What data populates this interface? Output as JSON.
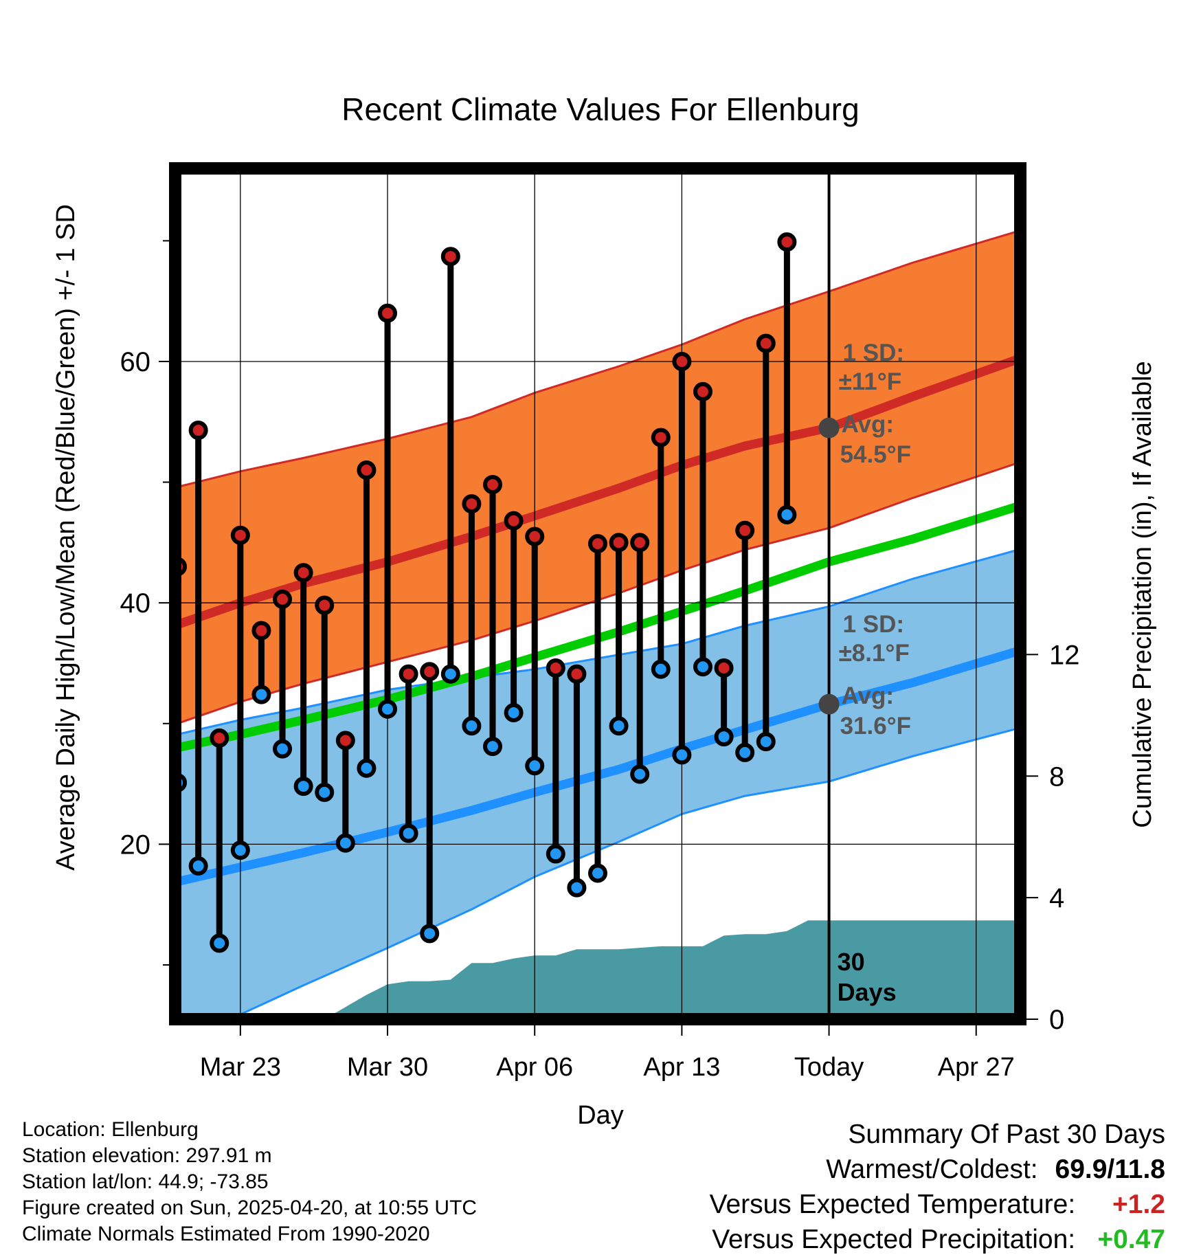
{
  "chart_data": {
    "type": "line",
    "title": "Recent Climate Values For Ellenburg",
    "xlabel": "Day",
    "ylabel": "Average Daily High/Low/Mean (Red/Blue/Green) +/- 1 SD",
    "y2label": "Cumulative Precipitation (in), If Available",
    "x_ticks": [
      {
        "day": 2,
        "label": "Mar 23"
      },
      {
        "day": 9,
        "label": "Mar 30"
      },
      {
        "day": 16,
        "label": "Apr 06"
      },
      {
        "day": 23,
        "label": "Apr 13"
      },
      {
        "day": 30,
        "label": "Today"
      },
      {
        "day": 37,
        "label": "Apr 27"
      }
    ],
    "xlim": [
      -1.1,
      39.1
    ],
    "y_ticks": [
      20,
      40,
      60
    ],
    "ylim": [
      5.5,
      76
    ],
    "y2_ticks": [
      0,
      4,
      8,
      12
    ],
    "y2lim": [
      0,
      28
    ],
    "today_day": 30,
    "today_label": "30\nDays",
    "normals": {
      "days": [
        -1,
        2,
        5,
        9,
        13,
        16,
        20,
        23,
        26,
        30,
        34,
        39
      ],
      "high_avg": [
        38.2,
        40.0,
        41.6,
        43.4,
        45.5,
        47.2,
        49.5,
        51.4,
        53.0,
        54.5,
        57.1,
        60.2
      ],
      "high_lo": [
        30.0,
        31.8,
        33.3,
        35.1,
        36.9,
        38.5,
        40.8,
        42.7,
        44.4,
        46.2,
        48.7,
        51.6
      ],
      "high_hi": [
        49.6,
        50.9,
        52.0,
        53.6,
        55.4,
        57.4,
        59.6,
        61.4,
        63.5,
        65.8,
        68.2,
        70.8
      ],
      "mean_avg": [
        28.0,
        29.1,
        30.3,
        32.0,
        33.9,
        35.5,
        37.6,
        39.3,
        41.0,
        43.4,
        45.3,
        48.0
      ],
      "low_avg": [
        16.9,
        18.1,
        19.3,
        21.0,
        22.8,
        24.3,
        26.2,
        27.9,
        29.5,
        31.6,
        33.4,
        36.0
      ],
      "low_lo": [
        3.6,
        5.9,
        8.3,
        11.4,
        14.6,
        17.3,
        20.2,
        22.5,
        24.0,
        25.2,
        27.3,
        29.6
      ],
      "low_hi": [
        29.1,
        30.3,
        31.3,
        32.8,
        33.8,
        34.5,
        35.7,
        36.6,
        38.1,
        39.7,
        42.0,
        44.4
      ],
      "high_annotation": {
        "sd_label": "1 SD:",
        "sd_value": "±11",
        "avg_label": "Avg:",
        "avg_value": "54.5",
        "unit": "°F"
      },
      "low_annotation": {
        "sd_label": "1 SD:",
        "sd_value": "±8.1",
        "avg_label": "Avg:",
        "avg_value": "31.6",
        "unit": "°F"
      }
    },
    "daily": {
      "days": [
        -1,
        0,
        1,
        2,
        3,
        4,
        5,
        6,
        7,
        8,
        9,
        10,
        11,
        12,
        13,
        14,
        15,
        16,
        17,
        18,
        19,
        20,
        21,
        22,
        23,
        24,
        25,
        26,
        27,
        28,
        29
      ],
      "highs": [
        43.0,
        54.3,
        28.8,
        45.6,
        37.7,
        40.3,
        42.5,
        39.8,
        28.6,
        51.0,
        64.0,
        34.1,
        34.3,
        68.7,
        48.2,
        49.8,
        46.8,
        45.5,
        34.6,
        34.1,
        44.9,
        45.0,
        45.0,
        53.7,
        60.0,
        57.5,
        34.6,
        46.0,
        61.5,
        69.9,
        null
      ],
      "lows": [
        25.1,
        18.2,
        11.8,
        19.5,
        32.4,
        27.9,
        24.8,
        24.3,
        20.1,
        26.3,
        31.2,
        20.9,
        12.6,
        34.1,
        29.8,
        28.1,
        30.9,
        26.5,
        19.2,
        16.4,
        17.6,
        29.8,
        25.8,
        34.5,
        27.4,
        34.7,
        28.9,
        27.6,
        28.5,
        47.3,
        null
      ]
    },
    "precip_cumulative": {
      "days": [
        -1,
        6,
        8,
        9,
        10,
        11,
        12,
        13,
        14,
        15,
        16,
        17,
        18,
        19,
        20,
        21,
        22,
        23,
        24,
        25,
        26,
        27,
        28,
        29,
        30,
        39
      ],
      "values": [
        0,
        0,
        0.8,
        1.15,
        1.25,
        1.25,
        1.3,
        1.85,
        1.85,
        2.0,
        2.1,
        2.1,
        2.3,
        2.3,
        2.3,
        2.35,
        2.4,
        2.4,
        2.4,
        2.75,
        2.8,
        2.8,
        2.9,
        3.25,
        3.25,
        3.25
      ]
    },
    "colors": {
      "high_band": "#f57c30",
      "high_line": "#d02a27",
      "low_band": "#82c0e8",
      "low_line": "#1e90ff",
      "mean_line": "#00cc00",
      "precip": "#4a9aa4",
      "annotation_text": "#555555",
      "high_dot": "#cc2222",
      "low_dot": "#2196f3",
      "avg_dot": "#444444"
    }
  },
  "footer": {
    "location": "Location: Ellenburg",
    "elevation": "Station elevation: 297.91 m",
    "latlon": "Station lat/lon: 44.9; -73.85",
    "created": "Figure created on Sun, 2025-04-20, at 10:55 UTC",
    "normals": "Climate Normals Estimated From 1990-2020"
  },
  "summary": {
    "title": "Summary Of Past 30 Days",
    "warmest_label": "Warmest/Coldest:",
    "warmest_value": "69.9/11.8",
    "temp_label": "Versus Expected Temperature:",
    "temp_value": "+1.2",
    "temp_color": "#cc2222",
    "precip_label": "Versus Expected Precipitation:",
    "precip_value": "+0.47",
    "precip_color": "#22bb22"
  }
}
